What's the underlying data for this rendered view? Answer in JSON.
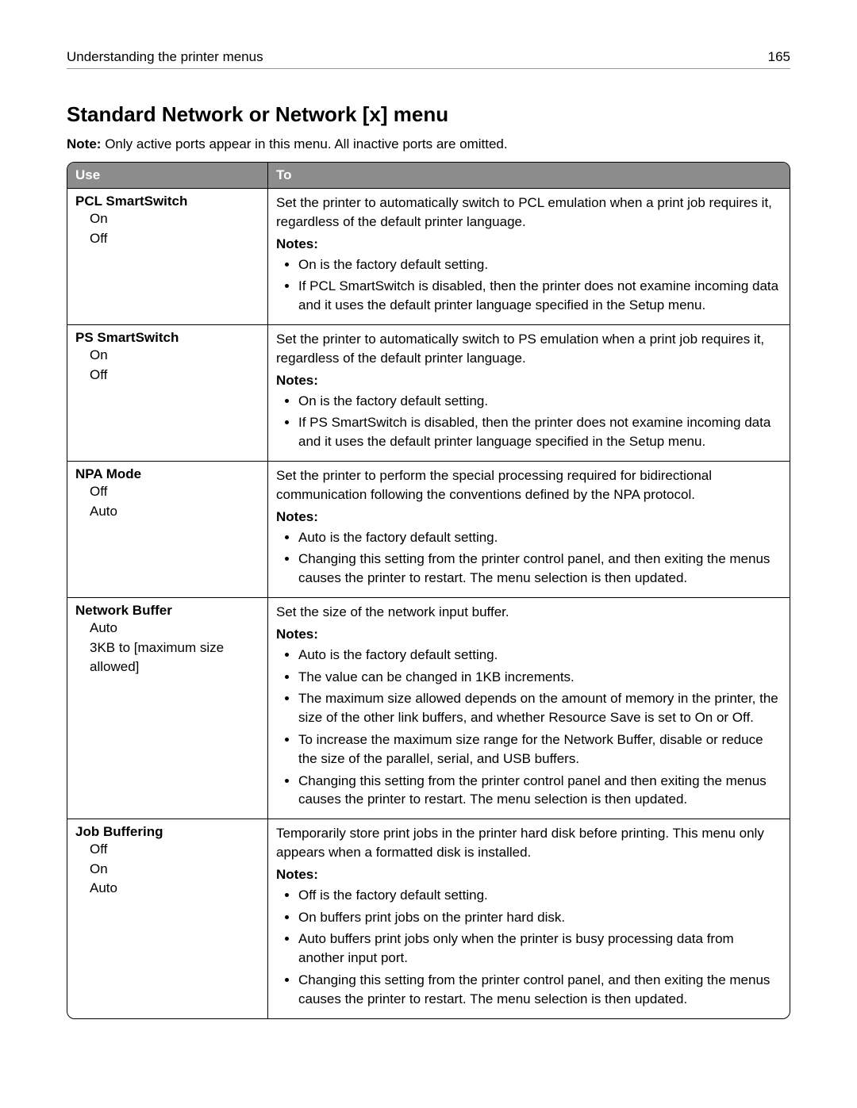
{
  "header": {
    "chapter": "Understanding the printer menus",
    "page_number": "165"
  },
  "section_title": "Standard Network or Network [x] menu",
  "note_prefix": "Note:",
  "note_body": "Only active ports appear in this menu. All inactive ports are omitted.",
  "table": {
    "col1": "Use",
    "col2": "To",
    "rows": [
      {
        "name": "PCL SmartSwitch",
        "options": [
          "On",
          "Off"
        ],
        "desc": "Set the printer to automatically switch to PCL emulation when a print job requires it, regardless of the default printer language.",
        "notes_label": "Notes:",
        "notes": [
          "On is the factory default setting.",
          "If PCL SmartSwitch is disabled, then the printer does not examine incoming data and it uses the default printer language specified in the Setup menu."
        ]
      },
      {
        "name": "PS SmartSwitch",
        "options": [
          "On",
          "Off"
        ],
        "desc": "Set the printer to automatically switch to PS emulation when a print job requires it, regardless of the default printer language.",
        "notes_label": "Notes:",
        "notes": [
          "On is the factory default setting.",
          "If PS SmartSwitch is disabled, then the printer does not examine incoming data and it uses the default printer language specified in the Setup menu."
        ]
      },
      {
        "name": "NPA Mode",
        "options": [
          "Off",
          "Auto"
        ],
        "desc": "Set the printer to perform the special processing required for bidirectional communication following the conventions defined by the NPA protocol.",
        "notes_label": "Notes:",
        "notes": [
          "Auto is the factory default setting.",
          "Changing this setting from the printer control panel, and then exiting the menus causes the printer to restart. The menu selection is then updated."
        ]
      },
      {
        "name": "Network Buffer",
        "options": [
          "Auto",
          "3KB to [maximum size allowed]"
        ],
        "desc": "Set the size of the network input buffer.",
        "notes_label": "Notes:",
        "notes": [
          "Auto is the factory default setting.",
          "The value can be changed in 1KB increments.",
          "The maximum size allowed depends on the amount of memory in the printer, the size of the other link buffers, and whether Resource Save is set to On or Off.",
          "To increase the maximum size range for the Network Buffer, disable or reduce the size of the parallel, serial, and USB buffers.",
          "Changing this setting from the printer control panel and then exiting the menus causes the printer to restart. The menu selection is then updated."
        ]
      },
      {
        "name": "Job Buffering",
        "options": [
          "Off",
          "On",
          "Auto"
        ],
        "desc": "Temporarily store print jobs in the printer hard disk before printing. This menu only appears when a formatted disk is installed.",
        "notes_label": "Notes:",
        "notes": [
          "Off is the factory default setting.",
          "On buffers print jobs on the printer hard disk.",
          "Auto buffers print jobs only when the printer is busy processing data from another input port.",
          "Changing this setting from the printer control panel, and then exiting the menus causes the printer to restart. The menu selection is then updated."
        ]
      }
    ]
  }
}
